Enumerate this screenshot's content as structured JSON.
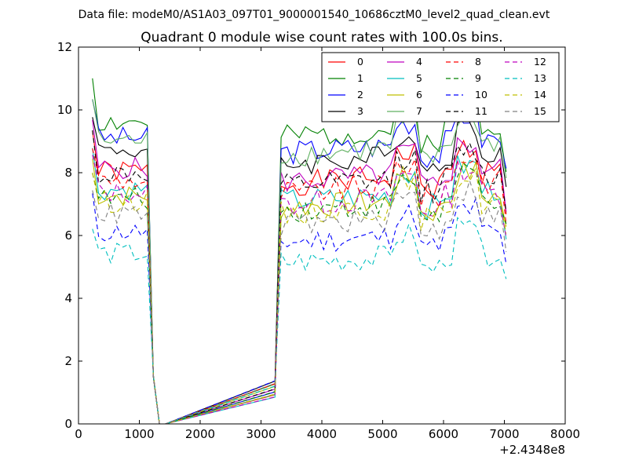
{
  "suptitle": "Data file: modeM0/AS1A03_097T01_9000001540_10686cztM0_level2_quad_clean.evt",
  "chart_data": {
    "type": "line",
    "title": "Quadrant 0 module wise count rates with 100.0s bins.",
    "xlabel": "",
    "ylabel": "",
    "xlim": [
      0,
      8000
    ],
    "ylim": [
      0,
      12
    ],
    "x_offset_label": "+2.4348e8",
    "x_ticks": [
      "0",
      "1000",
      "2000",
      "3000",
      "4000",
      "5000",
      "6000",
      "7000",
      "8000"
    ],
    "y_ticks": [
      "0",
      "2",
      "4",
      "6",
      "8",
      "10",
      "12"
    ],
    "legend_position": "top-right",
    "legend_columns": 4,
    "x": [
      230,
      330,
      430,
      530,
      630,
      730,
      830,
      930,
      1030,
      1130,
      1230,
      1330,
      1430,
      3230,
      3330,
      3430,
      3530,
      3630,
      3730,
      3830,
      3930,
      4030,
      4130,
      4230,
      4330,
      4430,
      4530,
      4630,
      4730,
      4830,
      4930,
      5030,
      5130,
      5230,
      5330,
      5430,
      5530,
      5630,
      5730,
      5830,
      5930,
      6030,
      6130,
      6230,
      6330,
      6430,
      6530,
      6630,
      6730,
      6830,
      6930,
      7030
    ],
    "series": [
      {
        "name": "0",
        "color": "#ff0000",
        "dash": "solid",
        "level": 8.3
      },
      {
        "name": "1",
        "color": "#008000",
        "dash": "solid",
        "level": 9.9
      },
      {
        "name": "2",
        "color": "#0000ff",
        "dash": "solid",
        "level": 9.4
      },
      {
        "name": "3",
        "color": "#000000",
        "dash": "solid",
        "level": 9.0
      },
      {
        "name": "4",
        "color": "#bf00bf",
        "dash": "solid",
        "level": 8.4
      },
      {
        "name": "5",
        "color": "#00bfbf",
        "dash": "solid",
        "level": 7.7
      },
      {
        "name": "6",
        "color": "#bfbf00",
        "dash": "solid",
        "level": 7.5
      },
      {
        "name": "7",
        "color": "#5fb060",
        "dash": "solid",
        "level": 9.3
      },
      {
        "name": "8",
        "color": "#ff0000",
        "dash": "dashed",
        "level": 8.0
      },
      {
        "name": "9",
        "color": "#008000",
        "dash": "dashed",
        "level": 7.4
      },
      {
        "name": "10",
        "color": "#0000ff",
        "dash": "dashed",
        "level": 6.3
      },
      {
        "name": "11",
        "color": "#000000",
        "dash": "dashed",
        "level": 8.2
      },
      {
        "name": "12",
        "color": "#bf00bf",
        "dash": "dashed",
        "level": 7.6
      },
      {
        "name": "13",
        "color": "#00bfbf",
        "dash": "dashed",
        "level": 5.6
      },
      {
        "name": "14",
        "color": "#bfbf00",
        "dash": "dashed",
        "level": 7.3
      },
      {
        "name": "15",
        "color": "#808080",
        "dash": "dashed",
        "level": 6.9
      }
    ]
  }
}
